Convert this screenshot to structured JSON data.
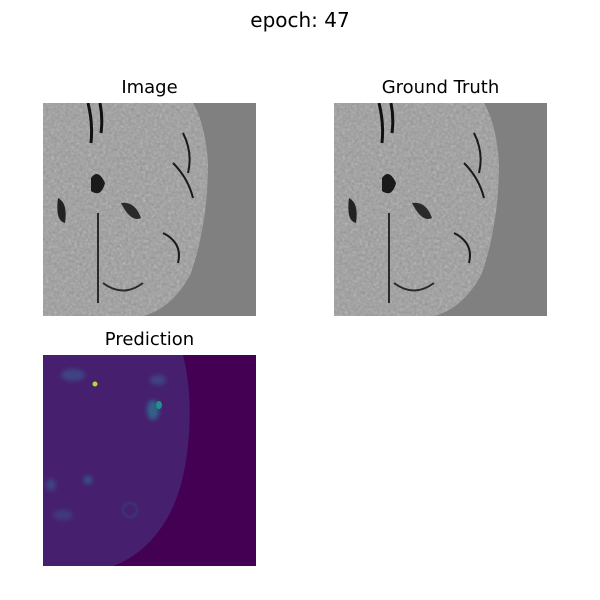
{
  "figure": {
    "title": "epoch: 47"
  },
  "panels": [
    {
      "title": "Image"
    },
    {
      "title": "Ground Truth"
    },
    {
      "title": "Prediction"
    }
  ],
  "colors": {
    "background_gray": "#808080",
    "prediction_base": "#440154",
    "prediction_hot": "#5ec962",
    "prediction_mid": "#21918c"
  }
}
